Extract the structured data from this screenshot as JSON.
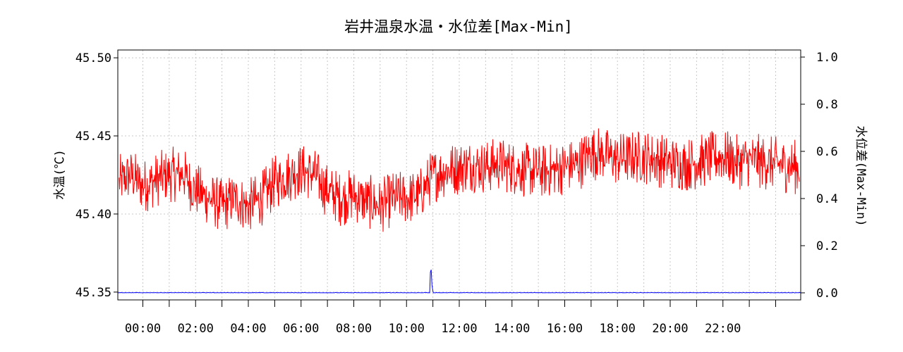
{
  "chart_data": {
    "type": "line",
    "title": "岩井温泉水温・水位差[Max-Min]",
    "ylabel_left": "水温(℃)",
    "ylabel_right": "水位差(Max-Min)",
    "ylim_left": [
      45.345,
      45.505
    ],
    "ylim_right": [
      -0.03,
      1.03
    ],
    "yticks_left": [
      "45.35",
      "45.40",
      "45.45",
      "45.50"
    ],
    "yticks_right": [
      "0.0",
      "0.2",
      "0.4",
      "0.6",
      "0.8",
      "1.0"
    ],
    "xlim_hours": [
      -0.95,
      24.95
    ],
    "xticks": [
      "00:00",
      "02:00",
      "04:00",
      "06:00",
      "08:00",
      "10:00",
      "12:00",
      "14:00",
      "16:00",
      "18:00",
      "20:00",
      "22:00"
    ],
    "grid": true,
    "series": [
      {
        "axis": "left",
        "color": "#ff0000",
        "x_hours": [
          -0.9,
          -0.5,
          0.0,
          0.5,
          1.0,
          1.5,
          2.0,
          2.5,
          3.0,
          3.5,
          4.0,
          4.5,
          5.0,
          5.5,
          6.0,
          6.5,
          7.0,
          7.5,
          8.0,
          8.5,
          9.0,
          9.5,
          10.0,
          10.5,
          11.0,
          11.5,
          12.0,
          12.5,
          13.0,
          13.5,
          14.0,
          14.5,
          15.0,
          15.5,
          16.0,
          16.5,
          17.0,
          17.5,
          18.0,
          18.5,
          19.0,
          19.5,
          20.0,
          20.5,
          21.0,
          21.5,
          22.0,
          22.5,
          23.0,
          23.5,
          24.0,
          24.9
        ],
        "values": [
          45.42,
          45.425,
          45.418,
          45.422,
          45.425,
          45.426,
          45.415,
          45.41,
          45.405,
          45.41,
          45.405,
          45.41,
          45.42,
          45.425,
          45.428,
          45.425,
          45.415,
          45.41,
          45.412,
          45.408,
          45.405,
          45.41,
          45.41,
          45.412,
          45.425,
          45.428,
          45.43,
          45.432,
          45.43,
          45.432,
          45.43,
          45.428,
          45.427,
          45.428,
          45.43,
          45.432,
          45.44,
          45.438,
          45.435,
          45.436,
          45.437,
          45.435,
          45.433,
          45.432,
          45.433,
          45.435,
          45.437,
          45.433,
          45.435,
          45.433,
          45.432,
          45.43
        ],
        "amplitude": 0.018
      },
      {
        "axis": "right",
        "color": "#0000ff",
        "x_hours": [
          -0.95,
          10.88,
          10.92,
          10.97,
          11.02,
          24.95
        ],
        "values": [
          0.0,
          0.0,
          0.13,
          0.02,
          0.0,
          0.0
        ],
        "amplitude": 0.002
      }
    ]
  }
}
